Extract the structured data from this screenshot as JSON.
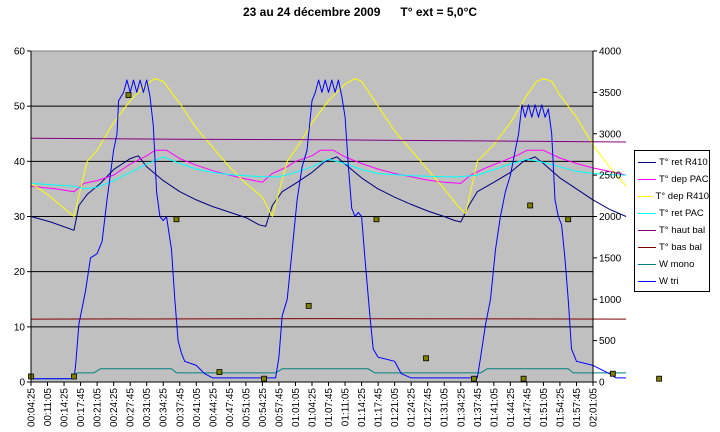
{
  "chart_data": {
    "type": "line",
    "title": "23 au 24 décembre 2009      T° ext = 5,0°C",
    "grid": true,
    "legend_position": "right",
    "background_color": "#c0c0c0",
    "y_left": {
      "range": [
        0,
        60
      ],
      "ticks": [
        "0",
        "10",
        "20",
        "30",
        "40",
        "50",
        "60"
      ]
    },
    "y_right": {
      "range": [
        0,
        4000
      ],
      "ticks": [
        "0",
        "500",
        "1000",
        "1500",
        "2000",
        "2500",
        "3000",
        "3500",
        "4000"
      ]
    },
    "x_ticks": [
      "00:04:25",
      "00:11:05",
      "00:14:25",
      "00:17:45",
      "00:21:05",
      "00:24:25",
      "00:27:45",
      "00:31:05",
      "00:34:25",
      "00:37:45",
      "00:41:05",
      "00:44:25",
      "00:47:45",
      "00:51:05",
      "00:54:25",
      "00:57:45",
      "01:01:05",
      "01:04:25",
      "01:07:45",
      "01:11:05",
      "01:14:25",
      "01:17:45",
      "01:21:05",
      "01:24:25",
      "01:27:45",
      "01:31:05",
      "01:34:25",
      "01:37:45",
      "01:41:05",
      "01:44:25",
      "01:47:45",
      "01:51:05",
      "01:54:25",
      "01:57:45",
      "02:01:05"
    ],
    "series": [
      {
        "name": "T° ret R410",
        "color": "#000080",
        "axis": "left",
        "points": [
          [
            0,
            30
          ],
          [
            1.2,
            29
          ],
          [
            2.6,
            27.5
          ],
          [
            2.9,
            32
          ],
          [
            3.4,
            34
          ],
          [
            4.2,
            36
          ],
          [
            5,
            38.5
          ],
          [
            6,
            40.5
          ],
          [
            6.5,
            41
          ],
          [
            7,
            39
          ],
          [
            8,
            36.5
          ],
          [
            9,
            34.5
          ],
          [
            10,
            33
          ],
          [
            11,
            31.8
          ],
          [
            12,
            30.8
          ],
          [
            13,
            29.8
          ],
          [
            13.8,
            28.5
          ],
          [
            14.2,
            28.2
          ],
          [
            14.6,
            32
          ],
          [
            15.2,
            34.5
          ],
          [
            16,
            36
          ],
          [
            17,
            38
          ],
          [
            17.8,
            40
          ],
          [
            18.5,
            40.8
          ],
          [
            19,
            39.5
          ],
          [
            20,
            37
          ],
          [
            21,
            35
          ],
          [
            22,
            33.5
          ],
          [
            23,
            32.2
          ],
          [
            24,
            31
          ],
          [
            25,
            30
          ],
          [
            25.6,
            29.3
          ],
          [
            26,
            29
          ],
          [
            26.5,
            32
          ],
          [
            27,
            34.5
          ],
          [
            28,
            36.2
          ],
          [
            29,
            38
          ],
          [
            29.8,
            40
          ],
          [
            30.5,
            40.8
          ],
          [
            31,
            39.6
          ],
          [
            32,
            37
          ],
          [
            33,
            35
          ],
          [
            34,
            33
          ],
          [
            35,
            31.3
          ],
          [
            36,
            30
          ]
        ]
      },
      {
        "name": "T° dep PAC",
        "color": "#ff00ff",
        "axis": "left",
        "points": [
          [
            0,
            35.5
          ],
          [
            1.5,
            35
          ],
          [
            2.6,
            34.5
          ],
          [
            3.2,
            36
          ],
          [
            4,
            36.5
          ],
          [
            5,
            37.5
          ],
          [
            6,
            39.5
          ],
          [
            7,
            41
          ],
          [
            7.5,
            42
          ],
          [
            8.2,
            42
          ],
          [
            9,
            40.5
          ],
          [
            10,
            39.3
          ],
          [
            11,
            38.3
          ],
          [
            12,
            37.5
          ],
          [
            13,
            36.8
          ],
          [
            14,
            36.2
          ],
          [
            14.6,
            37.8
          ],
          [
            15.5,
            39
          ],
          [
            16,
            40
          ],
          [
            17,
            41
          ],
          [
            17.5,
            42
          ],
          [
            18.3,
            42
          ],
          [
            19,
            40.8
          ],
          [
            20,
            39.6
          ],
          [
            21,
            38.6
          ],
          [
            22,
            37.8
          ],
          [
            23,
            37.2
          ],
          [
            24,
            36.6
          ],
          [
            25,
            36.2
          ],
          [
            26,
            36
          ],
          [
            26.6,
            37.5
          ],
          [
            27.5,
            38.8
          ],
          [
            28.5,
            40
          ],
          [
            29.5,
            41.2
          ],
          [
            30,
            42
          ],
          [
            31,
            42
          ],
          [
            32,
            40.6
          ],
          [
            33,
            39.6
          ],
          [
            34,
            38.8
          ],
          [
            35,
            38.2
          ],
          [
            36,
            37.5
          ]
        ]
      },
      {
        "name": "T° dep R410",
        "color": "#ffff00",
        "axis": "left",
        "points": [
          [
            0,
            36
          ],
          [
            1,
            34
          ],
          [
            2,
            31.5
          ],
          [
            2.6,
            30
          ],
          [
            3.4,
            40
          ],
          [
            4,
            42
          ],
          [
            5,
            47
          ],
          [
            6,
            51
          ],
          [
            7,
            54
          ],
          [
            7.5,
            55
          ],
          [
            8,
            54.5
          ],
          [
            9,
            50.5
          ],
          [
            10,
            46
          ],
          [
            11,
            42.5
          ],
          [
            12,
            39
          ],
          [
            13,
            36
          ],
          [
            14,
            33.5
          ],
          [
            14.6,
            30
          ],
          [
            15.5,
            40
          ],
          [
            16.2,
            43
          ],
          [
            17,
            47
          ],
          [
            18,
            51
          ],
          [
            19,
            54
          ],
          [
            19.6,
            55
          ],
          [
            20,
            54.5
          ],
          [
            21,
            50
          ],
          [
            22,
            45.5
          ],
          [
            23,
            42
          ],
          [
            24,
            38.5
          ],
          [
            25,
            35
          ],
          [
            25.8,
            32
          ],
          [
            26.3,
            30.5
          ],
          [
            27,
            40
          ],
          [
            28,
            43
          ],
          [
            29,
            47
          ],
          [
            30,
            52
          ],
          [
            30.6,
            54.5
          ],
          [
            31,
            55
          ],
          [
            31.5,
            54.5
          ],
          [
            32,
            52
          ],
          [
            33,
            48
          ],
          [
            34,
            43
          ],
          [
            35,
            39
          ],
          [
            36,
            35.5
          ]
        ]
      },
      {
        "name": "T° ret PAC",
        "color": "#00ffff",
        "axis": "left",
        "points": [
          [
            0,
            36
          ],
          [
            2.6,
            35.5
          ],
          [
            3.2,
            35
          ],
          [
            4,
            35.3
          ],
          [
            5,
            36.5
          ],
          [
            6,
            38
          ],
          [
            7,
            39.5
          ],
          [
            8,
            40.8
          ],
          [
            9,
            39.6
          ],
          [
            10,
            38.6
          ],
          [
            11,
            38
          ],
          [
            12,
            37.6
          ],
          [
            13,
            37.4
          ],
          [
            14,
            37.2
          ],
          [
            15,
            37.2
          ],
          [
            16,
            38
          ],
          [
            17,
            39
          ],
          [
            18,
            40.4
          ],
          [
            19,
            39.6
          ],
          [
            20,
            38.5
          ],
          [
            21,
            37.8
          ],
          [
            22,
            37.6
          ],
          [
            23,
            37.4
          ],
          [
            24,
            37.3
          ],
          [
            25,
            37.2
          ],
          [
            26,
            37.2
          ],
          [
            27,
            37.5
          ],
          [
            28,
            38.5
          ],
          [
            29,
            39.5
          ],
          [
            30,
            40.4
          ],
          [
            31,
            39.8
          ],
          [
            32,
            39
          ],
          [
            33,
            38.2
          ],
          [
            34,
            37.8
          ],
          [
            35,
            37.6
          ],
          [
            36,
            37.5
          ]
        ]
      },
      {
        "name": "T° haut bal",
        "color": "#800080",
        "axis": "left",
        "points": [
          [
            0,
            44.2
          ],
          [
            9,
            44
          ],
          [
            18,
            43.9
          ],
          [
            27,
            43.7
          ],
          [
            36,
            43.5
          ]
        ]
      },
      {
        "name": "T° bas bal",
        "color": "#800000",
        "axis": "left",
        "points": [
          [
            0,
            11.4
          ],
          [
            18,
            11.5
          ],
          [
            36,
            11.4
          ]
        ]
      },
      {
        "name": "W mono",
        "color": "#008080",
        "axis": "right",
        "points": [
          [
            0,
            40
          ],
          [
            2.5,
            40
          ],
          [
            2.8,
            110
          ],
          [
            3.8,
            110
          ],
          [
            4.2,
            160
          ],
          [
            8.5,
            160
          ],
          [
            8.8,
            110
          ],
          [
            14.8,
            110
          ],
          [
            15.2,
            160
          ],
          [
            20.4,
            160
          ],
          [
            20.8,
            110
          ],
          [
            27.2,
            110
          ],
          [
            27.6,
            160
          ],
          [
            32.5,
            160
          ],
          [
            32.8,
            110
          ],
          [
            36,
            110
          ]
        ]
      },
      {
        "name": "W tri",
        "color": "#0000ff",
        "axis": "right",
        "points": [
          [
            0,
            40
          ],
          [
            2.6,
            40
          ],
          [
            2.7,
            200
          ],
          [
            2.9,
            700
          ],
          [
            3.3,
            1100
          ],
          [
            3.6,
            1500
          ],
          [
            4,
            1550
          ],
          [
            4.3,
            1700
          ],
          [
            4.6,
            2200
          ],
          [
            5,
            2800
          ],
          [
            5.2,
            3000
          ],
          [
            5.3,
            3400
          ],
          [
            5.6,
            3500
          ],
          [
            5.8,
            3650
          ],
          [
            6,
            3500
          ],
          [
            6.2,
            3650
          ],
          [
            6.4,
            3500
          ],
          [
            6.6,
            3650
          ],
          [
            6.8,
            3500
          ],
          [
            7,
            3650
          ],
          [
            7.2,
            3450
          ],
          [
            7.4,
            3100
          ],
          [
            7.6,
            2300
          ],
          [
            7.8,
            2000
          ],
          [
            8,
            1950
          ],
          [
            8.2,
            2000
          ],
          [
            8.5,
            1600
          ],
          [
            8.7,
            1000
          ],
          [
            8.9,
            500
          ],
          [
            9.1,
            350
          ],
          [
            9.3,
            250
          ],
          [
            10,
            200
          ],
          [
            10.5,
            100
          ],
          [
            11,
            50
          ],
          [
            14.8,
            50
          ],
          [
            15,
            300
          ],
          [
            15.2,
            800
          ],
          [
            15.5,
            1000
          ],
          [
            15.8,
            1600
          ],
          [
            16.1,
            2200
          ],
          [
            16.4,
            2600
          ],
          [
            16.7,
            2800
          ],
          [
            17,
            3400
          ],
          [
            17.2,
            3500
          ],
          [
            17.4,
            3650
          ],
          [
            17.6,
            3500
          ],
          [
            17.8,
            3650
          ],
          [
            18,
            3500
          ],
          [
            18.2,
            3650
          ],
          [
            18.4,
            3500
          ],
          [
            18.6,
            3650
          ],
          [
            18.8,
            3450
          ],
          [
            19,
            3200
          ],
          [
            19.2,
            2600
          ],
          [
            19.4,
            2100
          ],
          [
            19.6,
            2000
          ],
          [
            19.8,
            2050
          ],
          [
            20,
            2000
          ],
          [
            20.2,
            1500
          ],
          [
            20.5,
            800
          ],
          [
            20.7,
            400
          ],
          [
            21,
            300
          ],
          [
            22,
            250
          ],
          [
            22.4,
            100
          ],
          [
            23,
            50
          ],
          [
            27,
            50
          ],
          [
            27.2,
            300
          ],
          [
            27.5,
            700
          ],
          [
            27.8,
            1000
          ],
          [
            28.1,
            1600
          ],
          [
            28.4,
            2000
          ],
          [
            28.7,
            2300
          ],
          [
            29,
            2500
          ],
          [
            29.3,
            2800
          ],
          [
            29.5,
            3000
          ],
          [
            29.7,
            3350
          ],
          [
            29.9,
            3200
          ],
          [
            30.1,
            3350
          ],
          [
            30.3,
            3200
          ],
          [
            30.5,
            3350
          ],
          [
            30.7,
            3200
          ],
          [
            30.9,
            3350
          ],
          [
            31.1,
            3200
          ],
          [
            31.3,
            3300
          ],
          [
            31.5,
            3000
          ],
          [
            31.7,
            2200
          ],
          [
            31.9,
            2000
          ],
          [
            32.1,
            1900
          ],
          [
            32.3,
            1500
          ],
          [
            32.5,
            1000
          ],
          [
            32.7,
            400
          ],
          [
            33,
            250
          ],
          [
            34,
            200
          ],
          [
            35,
            100
          ],
          [
            35.4,
            50
          ],
          [
            36,
            50
          ]
        ]
      }
    ],
    "markers": [
      [
        0,
        1
      ],
      [
        2.6,
        1
      ],
      [
        5.9,
        52
      ],
      [
        8.8,
        29.5
      ],
      [
        11.4,
        1.8
      ],
      [
        14.1,
        0.6
      ],
      [
        16.8,
        13.8
      ],
      [
        20.9,
        29.5
      ],
      [
        23.9,
        4.3
      ],
      [
        26.8,
        0.6
      ],
      [
        29.8,
        0.6
      ],
      [
        30.2,
        32
      ],
      [
        32.5,
        29.5
      ],
      [
        35.2,
        1.5
      ],
      [
        38,
        0.6
      ]
    ]
  }
}
